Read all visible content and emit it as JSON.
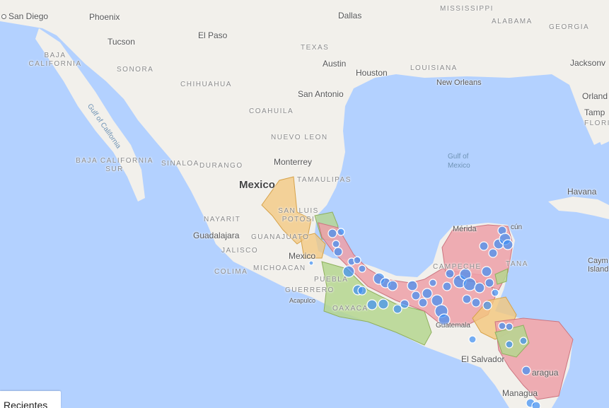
{
  "map": {
    "cities": {
      "san_diego": "San Diego",
      "phoenix": "Phoenix",
      "tucson": "Tucson",
      "el_paso": "El Paso",
      "dallas": "Dallas",
      "austin": "Austin",
      "houston": "Houston",
      "san_antonio": "San Antonio",
      "new_orleans": "New Orleans",
      "jacksonville": "Jacksonv",
      "orlando": "Orland",
      "tampa": "Tamp",
      "monterrey": "Monterrey",
      "guadalajara": "Guadalajara",
      "mexico_city": "Mexico",
      "acapulco": "Acapulco",
      "merida": "Mérida",
      "cancun": "cún",
      "havana": "Havana",
      "el_salvador": "El Salvador",
      "managua": "Managua",
      "guatemala": "Guatemala"
    },
    "regions": {
      "mississippi": "MISSISSIPPI",
      "alabama": "ALABAMA",
      "georgia": "GEORGIA",
      "texas": "TEXAS",
      "louisiana": "LOUISIANA",
      "florida": "FLORI",
      "baja_california": "BAJA CALIFORNIA",
      "sonora": "SONORA",
      "chihuahua": "CHIHUAHUA",
      "coahuila": "COAHUILA",
      "nuevo_leon": "NUEVO LEON",
      "tamaulipas": "TAMAULIPAS",
      "sinaloa": "SINALOA",
      "durango": "DURANGO",
      "baja_california_sur": "BAJA CALIFORNIA SUR",
      "san_luis_potosi": "SAN LUIS POTOSI",
      "nayarit": "NAYARIT",
      "guanajuato": "GUANAJUATO",
      "jalisco": "JALISCO",
      "colima": "COLIMA",
      "michoacan": "MICHOACAN",
      "guerrero": "GUERRERO",
      "puebla": "PUEBLA",
      "oaxaca": "OAXACA",
      "campeche": "CAMPECHE",
      "quintana": "TANA",
      "nicaragua": "aragua",
      "cayman": "Caym",
      "cayman_islands": "Island"
    },
    "country": "Mexico",
    "water": {
      "gulf_of_california": "Gulf of California",
      "gulf_of_mexico_1": "Gulf of",
      "gulf_of_mexico_2": "Mexico"
    },
    "colors": {
      "land": "#f2f0eb",
      "water": "#b3d1ff",
      "orange_region": "#f3c77c",
      "green_region": "#b5d68f",
      "pink_region": "#eda0a8",
      "marker": "#3d8ff5"
    }
  },
  "recent_tab": {
    "label": "Recientes"
  }
}
